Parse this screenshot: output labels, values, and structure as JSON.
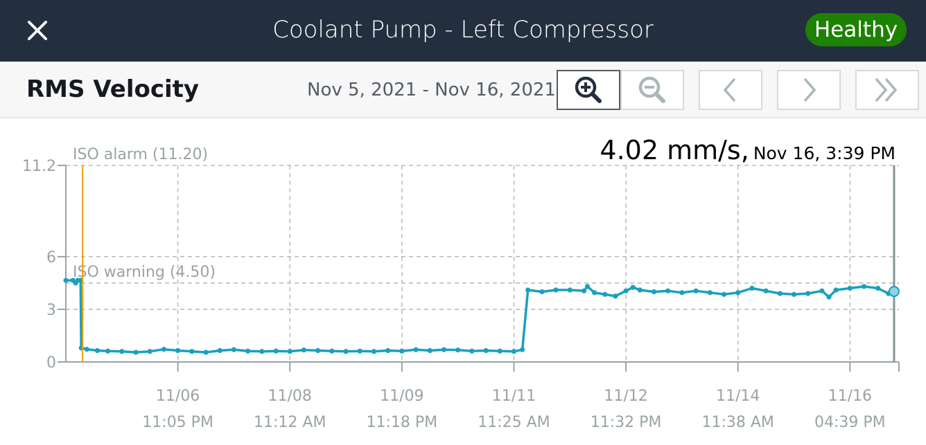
{
  "header": {
    "close_icon": "close-icon",
    "title": "Coolant Pump - Left Compressor",
    "status": "Healthy",
    "status_color": "#1d8102"
  },
  "toolbar": {
    "metric": "RMS Velocity",
    "date_range": "Nov 5, 2021 - Nov 16, 2021",
    "buttons": [
      {
        "icon": "zoom-in-icon",
        "active": true
      },
      {
        "icon": "zoom-out-icon",
        "active": false
      },
      {
        "icon": "chevron-left-icon",
        "active": false
      },
      {
        "icon": "chevron-right-icon",
        "active": false
      },
      {
        "icon": "double-chevron-right-icon",
        "active": false
      }
    ]
  },
  "readout": {
    "value": "4.02 mm/s,",
    "time": "Nov 16, 3:39 PM"
  },
  "chart_data": {
    "type": "line",
    "x_unit": "days since start of plotted range",
    "xlim": [
      0,
      11.9
    ],
    "ylim": [
      0,
      11.2
    ],
    "y_ticks": [
      "0",
      "3",
      "6",
      "11.2"
    ],
    "y_tick_values": [
      0,
      3,
      6,
      11.2
    ],
    "x_tick_labels": [
      {
        "date": "11/06",
        "time": "11:05 PM",
        "x": 1.6
      },
      {
        "date": "11/08",
        "time": "11:12 AM",
        "x": 3.2
      },
      {
        "date": "11/09",
        "time": "11:18 PM",
        "x": 4.8
      },
      {
        "date": "11/11",
        "time": "11:25 AM",
        "x": 6.4
      },
      {
        "date": "11/12",
        "time": "11:32 PM",
        "x": 8.0
      },
      {
        "date": "11/14",
        "time": "11:38 AM",
        "x": 9.6
      },
      {
        "date": "11/16",
        "time": "04:39 PM",
        "x": 11.2
      }
    ],
    "grid": true,
    "thresholds": [
      {
        "label": "ISO alarm (11.20)",
        "value": 11.2
      },
      {
        "label": "ISO warning (4.50)",
        "value": 4.5
      }
    ],
    "series": [
      {
        "name": "RMS Velocity",
        "color": "#1aa0be",
        "points": [
          [
            0,
            4.65
          ],
          [
            0.1,
            4.65
          ],
          [
            0.14,
            4.5
          ],
          [
            0.17,
            4.65
          ],
          [
            0.21,
            4.65
          ],
          [
            0.22,
            0.8
          ],
          [
            0.3,
            0.72
          ],
          [
            0.45,
            0.65
          ],
          [
            0.6,
            0.62
          ],
          [
            0.8,
            0.6
          ],
          [
            1.0,
            0.55
          ],
          [
            1.2,
            0.6
          ],
          [
            1.4,
            0.72
          ],
          [
            1.6,
            0.65
          ],
          [
            1.8,
            0.6
          ],
          [
            2.0,
            0.55
          ],
          [
            2.2,
            0.65
          ],
          [
            2.4,
            0.7
          ],
          [
            2.6,
            0.62
          ],
          [
            2.8,
            0.6
          ],
          [
            3.0,
            0.62
          ],
          [
            3.2,
            0.6
          ],
          [
            3.4,
            0.68
          ],
          [
            3.6,
            0.65
          ],
          [
            3.8,
            0.62
          ],
          [
            4.0,
            0.6
          ],
          [
            4.2,
            0.62
          ],
          [
            4.4,
            0.6
          ],
          [
            4.6,
            0.65
          ],
          [
            4.8,
            0.62
          ],
          [
            5.0,
            0.7
          ],
          [
            5.2,
            0.65
          ],
          [
            5.4,
            0.7
          ],
          [
            5.6,
            0.68
          ],
          [
            5.8,
            0.62
          ],
          [
            6.0,
            0.65
          ],
          [
            6.2,
            0.62
          ],
          [
            6.4,
            0.6
          ],
          [
            6.52,
            0.7
          ],
          [
            6.6,
            4.1
          ],
          [
            6.8,
            4.0
          ],
          [
            7.0,
            4.1
          ],
          [
            7.2,
            4.1
          ],
          [
            7.4,
            4.05
          ],
          [
            7.45,
            4.3
          ],
          [
            7.55,
            3.95
          ],
          [
            7.7,
            3.85
          ],
          [
            7.85,
            3.75
          ],
          [
            8.0,
            4.05
          ],
          [
            8.1,
            4.25
          ],
          [
            8.2,
            4.1
          ],
          [
            8.4,
            4.0
          ],
          [
            8.6,
            4.05
          ],
          [
            8.8,
            3.95
          ],
          [
            9.0,
            4.05
          ],
          [
            9.2,
            3.95
          ],
          [
            9.4,
            3.85
          ],
          [
            9.6,
            3.95
          ],
          [
            9.8,
            4.2
          ],
          [
            10.0,
            4.05
          ],
          [
            10.2,
            3.9
          ],
          [
            10.4,
            3.85
          ],
          [
            10.6,
            3.9
          ],
          [
            10.8,
            4.05
          ],
          [
            10.9,
            3.7
          ],
          [
            11.0,
            4.1
          ],
          [
            11.2,
            4.2
          ],
          [
            11.4,
            4.3
          ],
          [
            11.6,
            4.2
          ],
          [
            11.75,
            3.9
          ],
          [
            11.83,
            4.02
          ]
        ]
      }
    ]
  }
}
